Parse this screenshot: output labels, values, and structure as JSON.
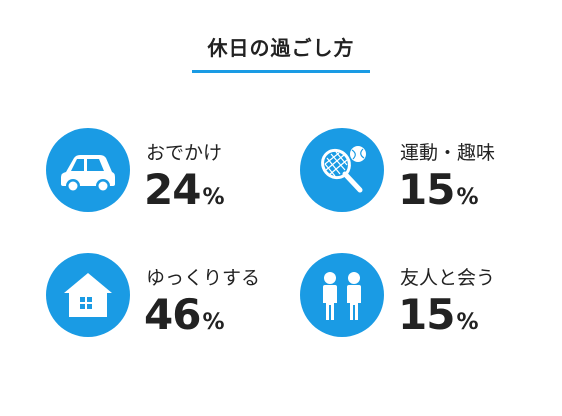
{
  "header": {
    "title": "休日の過ごし方"
  },
  "items": [
    {
      "label": "おでかけ",
      "value": "24",
      "unit": "%",
      "icon": "car-icon"
    },
    {
      "label": "運動・趣味",
      "value": "15",
      "unit": "%",
      "icon": "tennis-icon"
    },
    {
      "label": "ゆっくりする",
      "value": "46",
      "unit": "%",
      "icon": "house-icon"
    },
    {
      "label": "友人と会う",
      "value": "15",
      "unit": "%",
      "icon": "people-icon"
    }
  ],
  "colors": {
    "accent": "#1a9be4",
    "text": "#222222",
    "background": "#ffffff"
  }
}
